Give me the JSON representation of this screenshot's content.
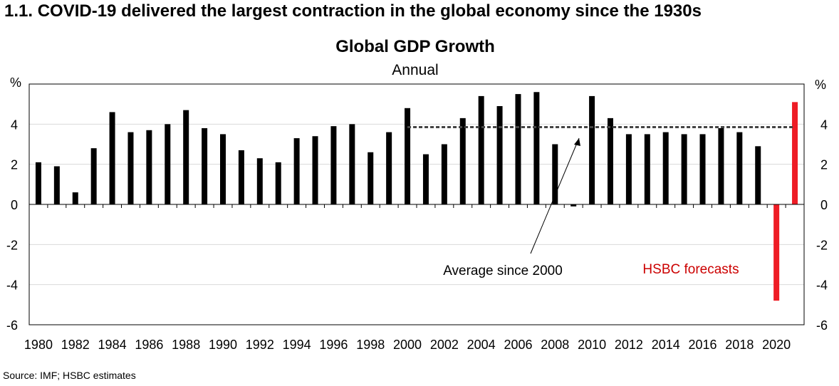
{
  "heading": "1.1. COVID-19 delivered the largest contraction in the global economy since the 1930s",
  "source": "Source: IMF; HSBC estimates",
  "chart_data": {
    "type": "bar",
    "title": "Global GDP Growth",
    "subtitle": "Annual",
    "ylabel_left": "%",
    "ylabel_right": "%",
    "ylim": [
      -6,
      6
    ],
    "yticks": [
      -6,
      -4,
      -2,
      0,
      2,
      4
    ],
    "xtick_labels": [
      "1980",
      "1982",
      "1984",
      "1986",
      "1988",
      "1990",
      "1992",
      "1994",
      "1996",
      "1998",
      "2000",
      "2002",
      "2004",
      "2006",
      "2008",
      "2010",
      "2012",
      "2014",
      "2016",
      "2018",
      "2020"
    ],
    "categories": [
      1980,
      1981,
      1982,
      1983,
      1984,
      1985,
      1986,
      1987,
      1988,
      1989,
      1990,
      1991,
      1992,
      1993,
      1994,
      1995,
      1996,
      1997,
      1998,
      1999,
      2000,
      2001,
      2002,
      2003,
      2004,
      2005,
      2006,
      2007,
      2008,
      2009,
      2010,
      2011,
      2012,
      2013,
      2014,
      2015,
      2016,
      2017,
      2018,
      2019,
      2020,
      2021
    ],
    "series": [
      {
        "values": [
          2.1,
          1.9,
          0.6,
          2.8,
          4.6,
          3.6,
          3.7,
          4.0,
          4.7,
          3.8,
          3.5,
          2.7,
          2.3,
          2.1,
          3.3,
          3.4,
          3.9,
          4.0,
          2.6,
          3.6,
          4.8,
          2.5,
          3.0,
          4.3,
          5.4,
          4.9,
          5.5,
          5.6,
          3.0,
          -0.1,
          5.4,
          4.3,
          3.5,
          3.5,
          3.6,
          3.5,
          3.5,
          3.8,
          3.6,
          2.9,
          -4.8,
          5.1
        ],
        "colors": {
          "actual": "#000000",
          "forecast": "#ee1c25"
        },
        "forecast_from": 2020
      }
    ],
    "average_line": {
      "from": 2000,
      "to": 2021,
      "value": 3.85,
      "color": "#444444"
    },
    "annotations": {
      "average": "Average since 2000",
      "forecast": "HSBC forecasts",
      "forecast_color": "#cc0000"
    },
    "grid": true
  }
}
